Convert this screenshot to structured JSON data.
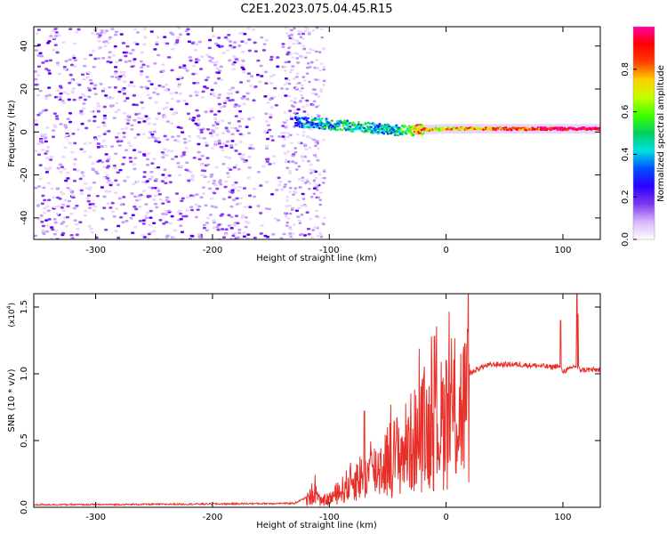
{
  "title": "C2E1.2023.075.04.45.R15",
  "chart_data": [
    {
      "type": "heatmap",
      "xlabel": "Height of straight line (km)",
      "ylabel": "Frequency (Hz)",
      "xlim": [
        -353,
        132
      ],
      "ylim": [
        -50,
        49
      ],
      "xticks": [
        -300,
        -200,
        -100,
        0,
        100
      ],
      "xtick_labels": [
        "-300",
        "-200",
        "-100",
        "0",
        "100"
      ],
      "yticks": [
        -40,
        -20,
        0,
        20,
        40
      ],
      "ytick_labels": [
        "-40",
        "-20",
        "0",
        "20",
        "40"
      ],
      "colorbar": {
        "label": "Normalized spectral amplitude",
        "range": [
          0,
          1
        ],
        "ticks": [
          0.0,
          0.2,
          0.4,
          0.6,
          0.8
        ],
        "tick_labels": [
          "0.0",
          "0.2",
          "0.4",
          "0.6",
          "0.8"
        ],
        "colors": [
          "#ffffff",
          "#d8b4fe",
          "#7c3aed",
          "#2a00ff",
          "#0050ff",
          "#00e0e0",
          "#00d060",
          "#40ff00",
          "#c0ff00",
          "#ffd000",
          "#ff4000",
          "#ff0000",
          "#ff00a0"
        ]
      },
      "features": {
        "noise_region": [
          -353,
          -110
        ],
        "trace": {
          "x": [
            -130,
            -110,
            -90,
            -70,
            -50,
            -35,
            -25,
            0,
            50,
            100,
            132
          ],
          "y": [
            5,
            4,
            3,
            2,
            1,
            0.5,
            1,
            1.5,
            1.5,
            1.5,
            1.5
          ],
          "amplitude": [
            0.3,
            0.4,
            0.45,
            0.45,
            0.4,
            0.55,
            0.75,
            0.7,
            0.85,
            0.95,
            0.95
          ]
        }
      }
    },
    {
      "type": "line",
      "xlabel": "Height of straight line (km)",
      "ylabel": "SNR (10 * v/v)",
      "scale_label": "(x10",
      "scale_exp": "4",
      "scale_close": ")",
      "xlim": [
        -353,
        132
      ],
      "ylim": [
        0,
        1.6
      ],
      "xticks": [
        -300,
        -200,
        -100,
        0,
        100
      ],
      "xtick_labels": [
        "-300",
        "-200",
        "-100",
        "0",
        "100"
      ],
      "yticks": [
        0.0,
        0.5,
        1.0,
        1.5
      ],
      "ytick_labels": [
        "0.0",
        "0.5",
        "1.0",
        "1.5"
      ],
      "color": "#e8302a",
      "series": [
        {
          "x": [
            -353,
            -300,
            -200,
            -130,
            -118,
            -112,
            -108,
            -100,
            -90,
            -80,
            -70,
            -60,
            -50,
            -40,
            -30,
            -20,
            -10,
            0,
            10,
            20,
            30,
            40,
            60,
            80,
            90,
            95,
            100,
            105,
            110,
            115,
            120,
            132
          ],
          "y": [
            0.02,
            0.02,
            0.025,
            0.03,
            0.08,
            0.15,
            0.05,
            0.08,
            0.15,
            0.25,
            0.3,
            0.35,
            0.45,
            0.5,
            0.6,
            0.7,
            0.75,
            0.8,
            0.9,
            1.0,
            1.05,
            1.07,
            1.07,
            1.06,
            1.05,
            1.06,
            1.02,
            1.03,
            1.06,
            1.03,
            1.03,
            1.03
          ],
          "spikes": [
            {
              "x": -115,
              "y": 0.18
            },
            {
              "x": -70,
              "y": 0.72
            },
            {
              "x": -45,
              "y": 0.45
            },
            {
              "x": -10,
              "y": 1.28
            },
            {
              "x": 0,
              "y": 1.1
            },
            {
              "x": 98,
              "y": 1.4
            },
            {
              "x": 112,
              "y": 1.6
            },
            {
              "x": 113,
              "y": 1.45
            }
          ]
        }
      ]
    }
  ]
}
